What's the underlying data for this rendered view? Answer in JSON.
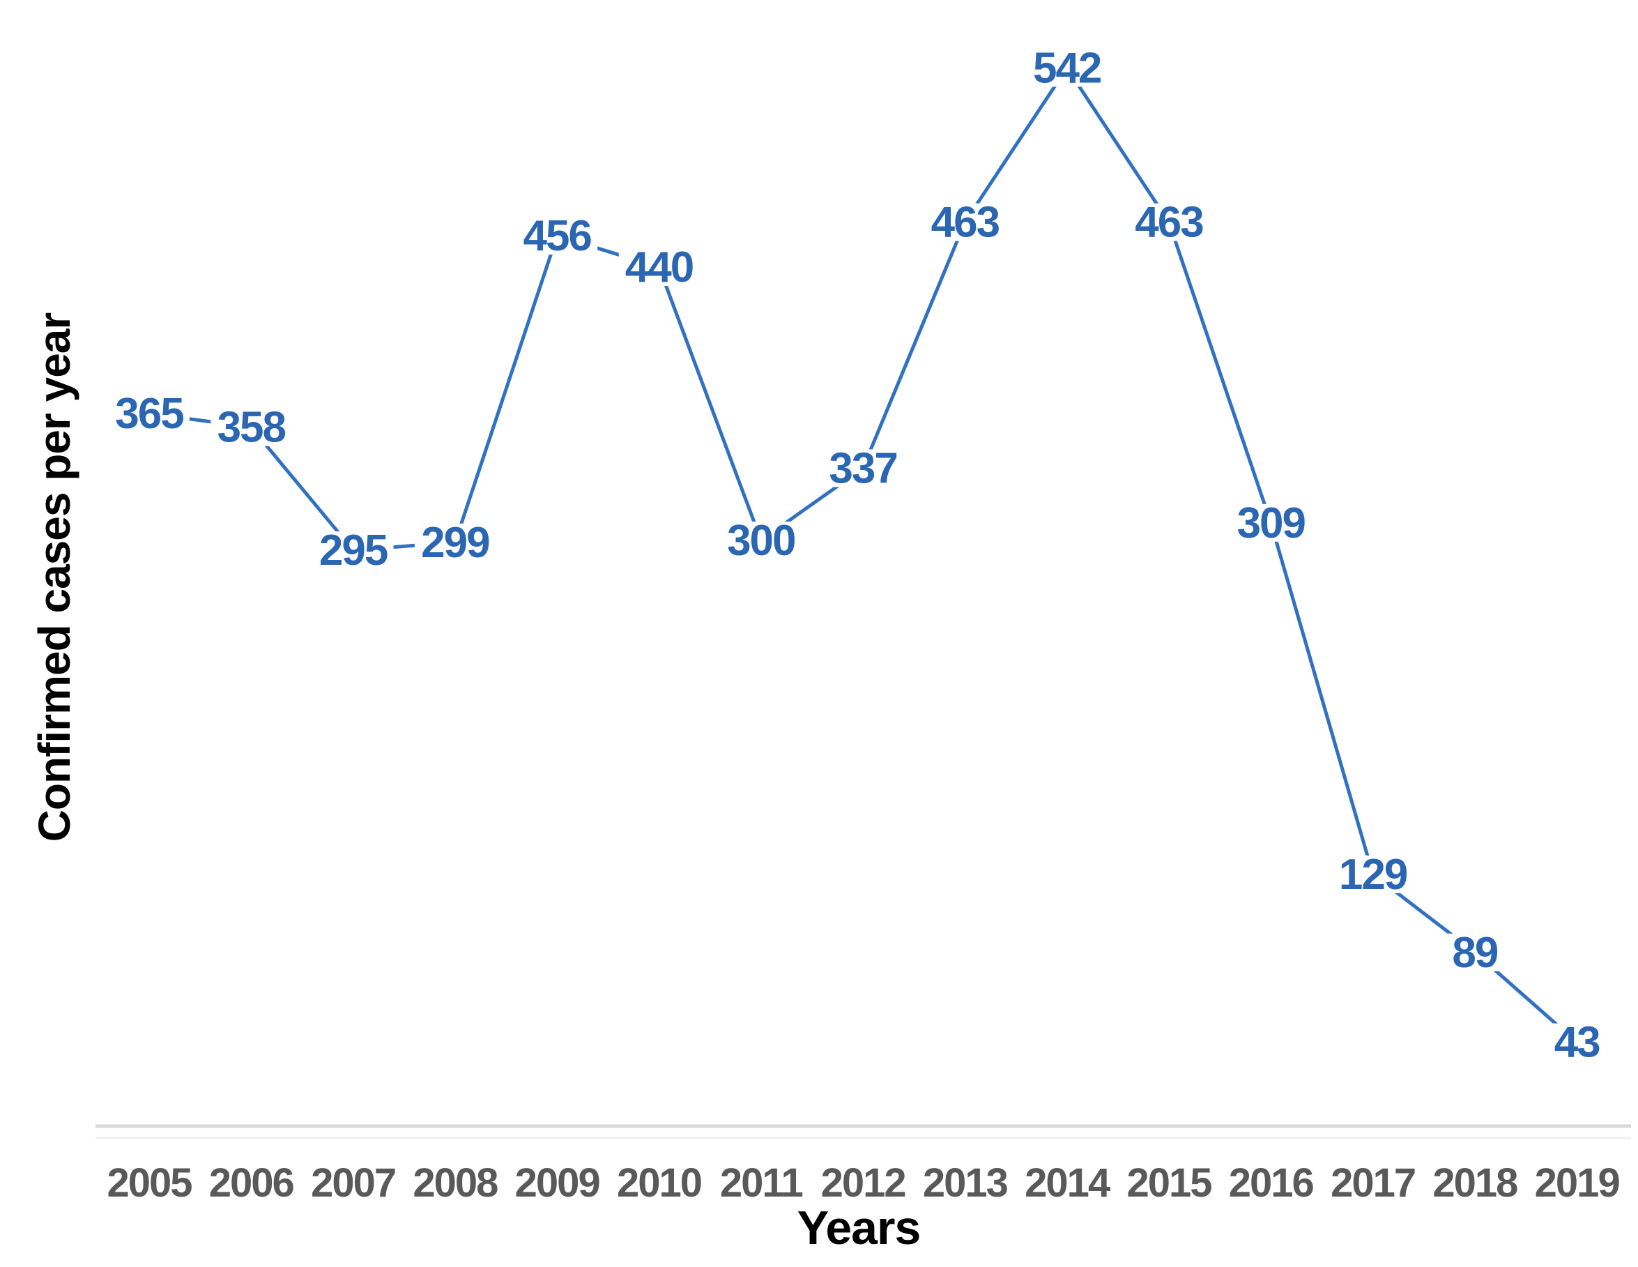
{
  "chart_data": {
    "type": "line",
    "title": "",
    "xlabel": "Years",
    "ylabel": "Confirmed cases per year",
    "categories": [
      "2005",
      "2006",
      "2007",
      "2008",
      "2009",
      "2010",
      "2011",
      "2012",
      "2013",
      "2014",
      "2015",
      "2016",
      "2017",
      "2018",
      "2019"
    ],
    "series": [
      {
        "name": "Confirmed cases per year",
        "values": [
          365,
          358,
          295,
          299,
          456,
          440,
          300,
          337,
          463,
          542,
          463,
          309,
          129,
          89,
          43
        ]
      }
    ],
    "data_labels_visible": true,
    "markers": "none",
    "grid": false,
    "legend_position": "none",
    "ylim": [
      0,
      580
    ],
    "colors": {
      "line": "#3171C2",
      "data_label": "#2A66B2",
      "x_tick": "#595959",
      "axis_title": "#000000",
      "axis_line": "#D9D9D9",
      "axis_line_faint": "#EFEFEF",
      "background": "#FFFFFF"
    }
  }
}
